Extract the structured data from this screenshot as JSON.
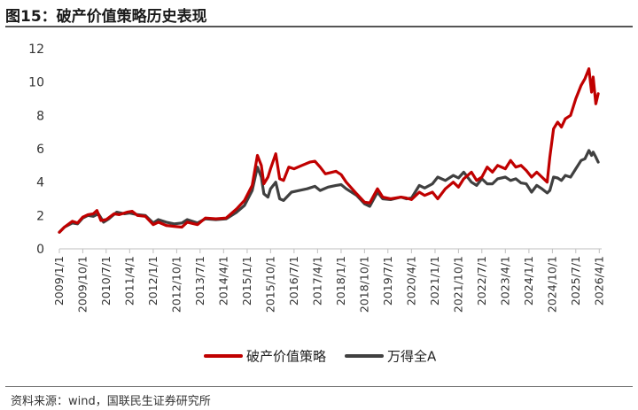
{
  "figure": {
    "title": "图15：破产价值策略历史表现",
    "source": "资料来源：wind，国联民生证券研究所"
  },
  "chart_data": {
    "type": "line",
    "title": "",
    "xlabel": "",
    "ylabel": "",
    "ylim": [
      0,
      12
    ],
    "yticks": [
      0,
      2,
      4,
      6,
      8,
      10,
      12
    ],
    "xticks": [
      "2009/1/1",
      "2009/10/1",
      "2010/7/1",
      "2011/4/1",
      "2012/1/1",
      "2012/10/1",
      "2013/7/1",
      "2014/4/1",
      "2015/1/1",
      "2015/10/1",
      "2016/7/1",
      "2017/4/1",
      "2018/1/1",
      "2018/10/1",
      "2019/7/1",
      "2020/4/1",
      "2021/1/1",
      "2021/10/1",
      "2022/7/1",
      "2023/4/1",
      "2024/1/1",
      "2024/10/1",
      "2025/7/1",
      "2026/4/1"
    ],
    "grid": false,
    "legend_position": "bottom",
    "series": [
      {
        "name": "破产价值策略",
        "color": "#c00000",
        "points": [
          [
            "2009-01-01",
            1.0
          ],
          [
            "2009-03-01",
            1.3
          ],
          [
            "2009-06-01",
            1.65
          ],
          [
            "2009-08-01",
            1.55
          ],
          [
            "2009-10-01",
            1.9
          ],
          [
            "2009-12-01",
            2.05
          ],
          [
            "2010-02-01",
            2.1
          ],
          [
            "2010-03-15",
            2.3
          ],
          [
            "2010-05-01",
            1.7
          ],
          [
            "2010-07-01",
            1.75
          ],
          [
            "2010-10-01",
            2.1
          ],
          [
            "2010-12-01",
            2.05
          ],
          [
            "2011-03-01",
            2.2
          ],
          [
            "2011-05-01",
            2.25
          ],
          [
            "2011-07-01",
            2.0
          ],
          [
            "2011-10-01",
            1.95
          ],
          [
            "2012-01-01",
            1.45
          ],
          [
            "2012-03-01",
            1.6
          ],
          [
            "2012-06-01",
            1.4
          ],
          [
            "2012-09-01",
            1.35
          ],
          [
            "2012-12-01",
            1.3
          ],
          [
            "2013-02-01",
            1.6
          ],
          [
            "2013-06-01",
            1.45
          ],
          [
            "2013-09-01",
            1.85
          ],
          [
            "2014-01-01",
            1.8
          ],
          [
            "2014-05-01",
            1.85
          ],
          [
            "2014-09-01",
            2.4
          ],
          [
            "2014-12-01",
            2.9
          ],
          [
            "2015-03-01",
            3.8
          ],
          [
            "2015-05-01",
            5.6
          ],
          [
            "2015-06-15",
            5.0
          ],
          [
            "2015-07-15",
            3.9
          ],
          [
            "2015-09-01",
            4.3
          ],
          [
            "2015-10-01",
            4.8
          ],
          [
            "2015-12-01",
            5.7
          ],
          [
            "2016-01-15",
            4.2
          ],
          [
            "2016-03-01",
            4.1
          ],
          [
            "2016-05-01",
            4.9
          ],
          [
            "2016-07-01",
            4.8
          ],
          [
            "2016-10-01",
            5.0
          ],
          [
            "2017-01-01",
            5.2
          ],
          [
            "2017-03-01",
            5.25
          ],
          [
            "2017-05-01",
            4.9
          ],
          [
            "2017-07-01",
            4.5
          ],
          [
            "2017-11-01",
            4.65
          ],
          [
            "2018-01-01",
            4.45
          ],
          [
            "2018-03-01",
            4.0
          ],
          [
            "2018-07-01",
            3.3
          ],
          [
            "2018-10-01",
            2.8
          ],
          [
            "2018-12-01",
            2.75
          ],
          [
            "2019-03-01",
            3.6
          ],
          [
            "2019-05-01",
            3.1
          ],
          [
            "2019-08-01",
            3.0
          ],
          [
            "2019-12-01",
            3.1
          ],
          [
            "2020-02-01",
            3.05
          ],
          [
            "2020-04-01",
            2.95
          ],
          [
            "2020-07-01",
            3.4
          ],
          [
            "2020-09-01",
            3.2
          ],
          [
            "2020-12-01",
            3.4
          ],
          [
            "2021-02-01",
            3.0
          ],
          [
            "2021-05-01",
            3.6
          ],
          [
            "2021-08-01",
            4.0
          ],
          [
            "2021-10-01",
            3.7
          ],
          [
            "2021-12-01",
            4.2
          ],
          [
            "2022-03-01",
            4.6
          ],
          [
            "2022-05-01",
            4.1
          ],
          [
            "2022-07-01",
            4.3
          ],
          [
            "2022-09-01",
            4.9
          ],
          [
            "2022-11-01",
            4.6
          ],
          [
            "2023-01-01",
            5.0
          ],
          [
            "2023-04-01",
            4.8
          ],
          [
            "2023-06-01",
            5.3
          ],
          [
            "2023-08-01",
            4.9
          ],
          [
            "2023-10-01",
            5.0
          ],
          [
            "2023-12-01",
            4.7
          ],
          [
            "2024-02-01",
            4.3
          ],
          [
            "2024-04-01",
            4.6
          ],
          [
            "2024-06-01",
            4.3
          ],
          [
            "2024-08-01",
            4.0
          ],
          [
            "2024-09-01",
            5.5
          ],
          [
            "2024-10-15",
            7.2
          ],
          [
            "2024-12-01",
            7.6
          ],
          [
            "2025-01-15",
            7.3
          ],
          [
            "2025-03-01",
            7.8
          ],
          [
            "2025-05-01",
            8.0
          ],
          [
            "2025-07-01",
            9.0
          ],
          [
            "2025-09-01",
            9.8
          ],
          [
            "2025-10-15",
            10.2
          ],
          [
            "2025-12-01",
            10.8
          ],
          [
            "2026-01-01",
            9.4
          ],
          [
            "2026-01-20",
            10.3
          ],
          [
            "2026-02-20",
            8.7
          ],
          [
            "2026-03-20",
            9.3
          ]
        ]
      },
      {
        "name": "万得全A",
        "color": "#404040",
        "points": [
          [
            "2009-01-01",
            1.0
          ],
          [
            "2009-03-01",
            1.3
          ],
          [
            "2009-06-01",
            1.55
          ],
          [
            "2009-08-01",
            1.5
          ],
          [
            "2009-10-01",
            1.85
          ],
          [
            "2009-12-01",
            2.0
          ],
          [
            "2010-02-01",
            1.95
          ],
          [
            "2010-04-01",
            2.1
          ],
          [
            "2010-06-01",
            1.6
          ],
          [
            "2010-08-01",
            1.8
          ],
          [
            "2010-11-01",
            2.2
          ],
          [
            "2011-02-01",
            2.1
          ],
          [
            "2011-04-01",
            2.15
          ],
          [
            "2011-07-01",
            2.05
          ],
          [
            "2011-10-01",
            2.0
          ],
          [
            "2012-01-01",
            1.55
          ],
          [
            "2012-03-01",
            1.75
          ],
          [
            "2012-06-01",
            1.6
          ],
          [
            "2012-09-01",
            1.5
          ],
          [
            "2012-12-01",
            1.55
          ],
          [
            "2013-02-01",
            1.75
          ],
          [
            "2013-06-01",
            1.55
          ],
          [
            "2013-09-01",
            1.8
          ],
          [
            "2014-01-01",
            1.75
          ],
          [
            "2014-05-01",
            1.8
          ],
          [
            "2014-09-01",
            2.2
          ],
          [
            "2014-12-01",
            2.6
          ],
          [
            "2015-03-01",
            3.5
          ],
          [
            "2015-05-01",
            4.9
          ],
          [
            "2015-06-15",
            4.3
          ],
          [
            "2015-07-15",
            3.3
          ],
          [
            "2015-09-01",
            3.1
          ],
          [
            "2015-10-01",
            3.6
          ],
          [
            "2015-12-01",
            4.0
          ],
          [
            "2016-01-15",
            3.0
          ],
          [
            "2016-03-01",
            2.9
          ],
          [
            "2016-06-01",
            3.4
          ],
          [
            "2016-09-01",
            3.5
          ],
          [
            "2016-12-01",
            3.6
          ],
          [
            "2017-03-01",
            3.75
          ],
          [
            "2017-05-01",
            3.5
          ],
          [
            "2017-08-01",
            3.7
          ],
          [
            "2017-11-01",
            3.8
          ],
          [
            "2018-01-01",
            3.85
          ],
          [
            "2018-03-01",
            3.6
          ],
          [
            "2018-07-01",
            3.2
          ],
          [
            "2018-10-01",
            2.7
          ],
          [
            "2018-12-01",
            2.55
          ],
          [
            "2019-03-01",
            3.4
          ],
          [
            "2019-05-01",
            3.0
          ],
          [
            "2019-08-01",
            2.95
          ],
          [
            "2019-12-01",
            3.1
          ],
          [
            "2020-02-01",
            3.0
          ],
          [
            "2020-04-01",
            3.05
          ],
          [
            "2020-07-01",
            3.8
          ],
          [
            "2020-09-01",
            3.65
          ],
          [
            "2020-12-01",
            3.9
          ],
          [
            "2021-02-01",
            4.3
          ],
          [
            "2021-05-01",
            4.1
          ],
          [
            "2021-08-01",
            4.4
          ],
          [
            "2021-10-01",
            4.25
          ],
          [
            "2021-12-01",
            4.6
          ],
          [
            "2022-03-01",
            4.0
          ],
          [
            "2022-05-01",
            3.8
          ],
          [
            "2022-07-01",
            4.2
          ],
          [
            "2022-09-01",
            3.9
          ],
          [
            "2022-11-01",
            3.9
          ],
          [
            "2023-01-01",
            4.2
          ],
          [
            "2023-04-01",
            4.3
          ],
          [
            "2023-06-01",
            4.1
          ],
          [
            "2023-08-01",
            4.2
          ],
          [
            "2023-10-01",
            3.95
          ],
          [
            "2023-12-01",
            3.9
          ],
          [
            "2024-02-01",
            3.4
          ],
          [
            "2024-04-01",
            3.8
          ],
          [
            "2024-06-01",
            3.6
          ],
          [
            "2024-08-01",
            3.35
          ],
          [
            "2024-09-01",
            3.5
          ],
          [
            "2024-10-15",
            4.3
          ],
          [
            "2024-12-01",
            4.25
          ],
          [
            "2025-01-15",
            4.1
          ],
          [
            "2025-03-01",
            4.4
          ],
          [
            "2025-05-01",
            4.3
          ],
          [
            "2025-07-01",
            4.8
          ],
          [
            "2025-09-01",
            5.3
          ],
          [
            "2025-10-15",
            5.4
          ],
          [
            "2025-12-01",
            5.9
          ],
          [
            "2026-01-01",
            5.6
          ],
          [
            "2026-01-20",
            5.8
          ],
          [
            "2026-02-20",
            5.5
          ],
          [
            "2026-03-20",
            5.2
          ]
        ]
      }
    ]
  }
}
